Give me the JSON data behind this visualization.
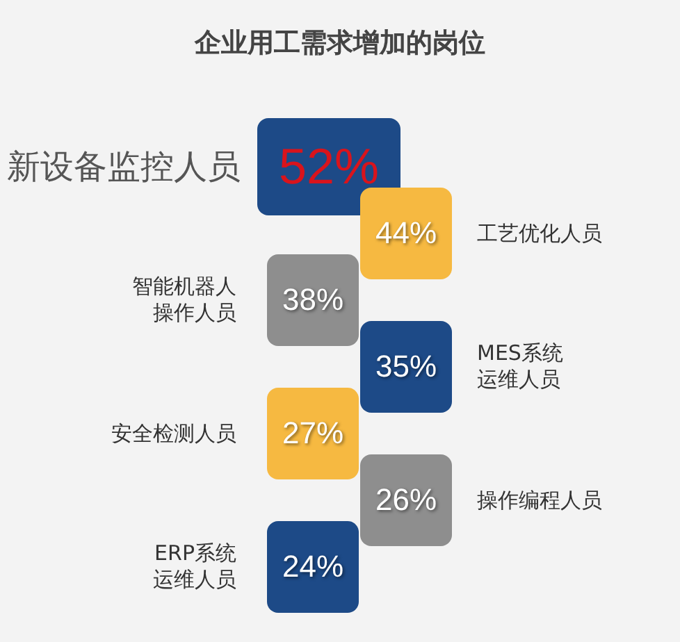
{
  "chart_data": {
    "type": "other",
    "title": "企业用工需求增加的岗位",
    "categories": [
      "新设备监控人员",
      "工艺优化人员",
      "智能机器人操作人员",
      "MES系统运维人员",
      "安全检测人员",
      "操作编程人员",
      "ERP系统运维人员"
    ],
    "values": [
      52,
      44,
      38,
      35,
      27,
      26,
      24
    ],
    "value_labels": [
      "52%",
      "44%",
      "38%",
      "35%",
      "27%",
      "26%",
      "24%"
    ],
    "colors": [
      "#1d4a87",
      "#f6b941",
      "#8e8e8e",
      "#1d4a87",
      "#f6b941",
      "#8e8e8e",
      "#1d4a87"
    ]
  }
}
